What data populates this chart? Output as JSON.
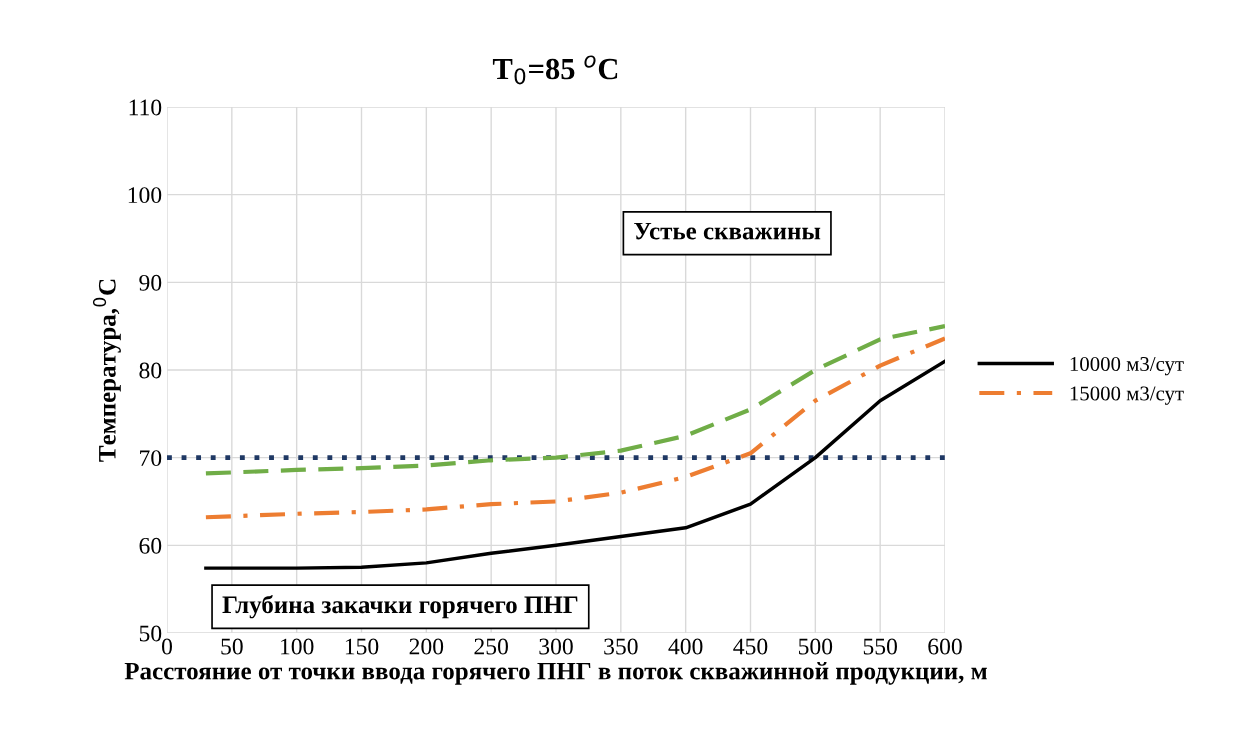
{
  "chart_data": {
    "type": "line",
    "title": "T$_{0}$=85 $^{o}$C",
    "xlabel": "Расстояние от точки ввода горячего ПНГ в поток скважинной продукции, м",
    "ylabel": "Температура,$^{0}$C",
    "xlim": [
      0,
      600
    ],
    "xticks": [
      0,
      50,
      100,
      150,
      200,
      250,
      300,
      350,
      400,
      450,
      500,
      550,
      600
    ],
    "ylim": [
      50,
      110
    ],
    "yticks": [
      50,
      60,
      70,
      80,
      90,
      100,
      110
    ],
    "grid": true,
    "legend": "right",
    "marker": "none",
    "x": [
      30,
      100,
      150,
      200,
      250,
      300,
      350,
      400,
      450,
      500,
      550,
      600
    ],
    "series": [
      {
        "name": "10000 м3/сут",
        "color": "#000000",
        "line_style": "solid",
        "values": [
          57.4,
          57.4,
          57.5,
          58,
          59.1,
          60,
          61,
          62,
          64.7,
          70,
          76.5,
          81
        ]
      },
      {
        "name": "15000 м3/сут",
        "color": "#ed7d31",
        "line_style": "dashdot",
        "values": [
          63.2,
          63.6,
          63.8,
          64.1,
          64.7,
          65,
          66,
          67.8,
          70.5,
          76.5,
          80.5,
          83.6
        ]
      },
      {
        "color": "#70ad47",
        "line_style": "dashed",
        "values": [
          68.2,
          68.6,
          68.8,
          69.1,
          69.7,
          70,
          70.8,
          72.5,
          75.5,
          80,
          83.5,
          85
        ]
      }
    ],
    "ref_lines": [
      {
        "axis": "y",
        "value": 70,
        "color": "#1f3864",
        "line_style": "dotted"
      }
    ],
    "annotations": [
      "Устье скважины",
      "Глубина закачки горячего ПНГ"
    ]
  }
}
